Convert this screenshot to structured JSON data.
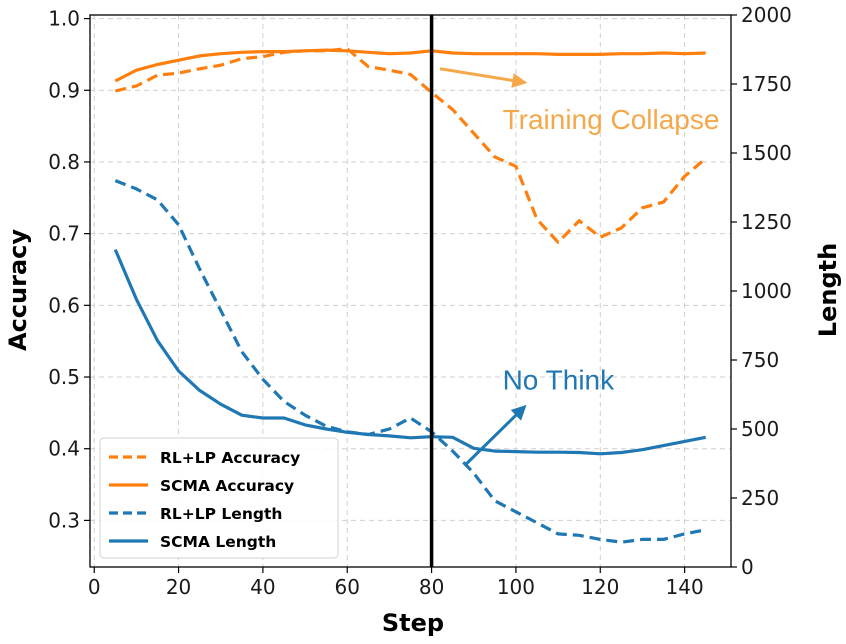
{
  "chart_data": {
    "type": "line",
    "xlabel": "Step",
    "ylabel": "Accuracy",
    "y2label": "Length",
    "xlim": [
      -1,
      151
    ],
    "ylim": [
      0.235,
      1.005
    ],
    "y2lim": [
      0,
      2000
    ],
    "xticks": [
      0,
      20,
      40,
      60,
      80,
      100,
      120,
      140
    ],
    "yticks": [
      0.3,
      0.4,
      0.5,
      0.6,
      0.7,
      0.8,
      0.9,
      1.0
    ],
    "y2ticks": [
      0,
      250,
      500,
      750,
      1000,
      1250,
      1500,
      1750,
      2000
    ],
    "grid": true,
    "vertical_line_step": 80,
    "colors": {
      "orange": "#ff7f0e",
      "blue": "#1f77b4",
      "annotation_orange": "#f5a849",
      "black": "#000000"
    },
    "series": [
      {
        "name": "RL+LP Accuracy",
        "axis": "left",
        "color": "orange",
        "style": "dashed",
        "x": [
          5,
          10,
          15,
          20,
          25,
          30,
          35,
          40,
          45,
          50,
          55,
          60,
          65,
          70,
          75,
          80,
          85,
          90,
          95,
          100,
          105,
          110,
          115,
          120,
          125,
          130,
          135,
          140,
          145
        ],
        "values": [
          0.899,
          0.906,
          0.921,
          0.924,
          0.93,
          0.935,
          0.944,
          0.947,
          0.953,
          0.955,
          0.955,
          0.958,
          0.933,
          0.928,
          0.922,
          0.897,
          0.873,
          0.84,
          0.807,
          0.794,
          0.72,
          0.688,
          0.718,
          0.695,
          0.708,
          0.736,
          0.744,
          0.78,
          0.805
        ]
      },
      {
        "name": "SCMA Accuracy",
        "axis": "left",
        "color": "orange",
        "style": "solid",
        "x": [
          5,
          10,
          15,
          20,
          25,
          30,
          35,
          40,
          45,
          50,
          55,
          60,
          65,
          70,
          75,
          80,
          85,
          90,
          95,
          100,
          105,
          110,
          115,
          120,
          125,
          130,
          135,
          140,
          145
        ],
        "values": [
          0.913,
          0.928,
          0.936,
          0.942,
          0.948,
          0.951,
          0.953,
          0.954,
          0.954,
          0.955,
          0.956,
          0.955,
          0.953,
          0.951,
          0.952,
          0.955,
          0.952,
          0.951,
          0.951,
          0.951,
          0.951,
          0.95,
          0.95,
          0.95,
          0.951,
          0.951,
          0.952,
          0.951,
          0.952
        ]
      },
      {
        "name": "RL+LP Length",
        "axis": "right",
        "color": "blue",
        "style": "dashed",
        "x": [
          5,
          10,
          15,
          20,
          25,
          30,
          35,
          40,
          45,
          50,
          55,
          60,
          65,
          70,
          75,
          80,
          85,
          90,
          95,
          100,
          105,
          110,
          115,
          120,
          125,
          130,
          135,
          140,
          145
        ],
        "values": [
          1400,
          1370,
          1330,
          1240,
          1080,
          930,
          780,
          680,
          600,
          550,
          510,
          490,
          480,
          500,
          540,
          490,
          420,
          340,
          240,
          200,
          160,
          120,
          115,
          100,
          90,
          100,
          100,
          120,
          135
        ]
      },
      {
        "name": "SCMA Length",
        "axis": "right",
        "color": "blue",
        "style": "solid",
        "x": [
          5,
          10,
          15,
          20,
          25,
          30,
          35,
          40,
          45,
          50,
          55,
          60,
          65,
          70,
          75,
          80,
          85,
          90,
          95,
          100,
          105,
          110,
          115,
          120,
          125,
          130,
          135,
          140,
          145
        ],
        "values": [
          1150,
          970,
          820,
          710,
          640,
          590,
          550,
          540,
          540,
          515,
          500,
          488,
          480,
          475,
          468,
          472,
          470,
          430,
          420,
          418,
          416,
          416,
          415,
          410,
          415,
          425,
          440,
          455,
          470
        ]
      }
    ],
    "legend": {
      "position": "lower-left",
      "entries": [
        "RL+LP Accuracy",
        "SCMA Accuracy",
        "RL+LP Length",
        "SCMA Length"
      ]
    },
    "annotations": [
      {
        "text": "Training Collapse",
        "color": "annotation_orange",
        "arrow_from": [
          82,
          0.93
        ],
        "arrow_to": [
          102,
          0.911
        ],
        "text_at": [
          103,
          0.86
        ]
      },
      {
        "text": "No Think",
        "color": "blue",
        "arrow_from": [
          88,
          370
        ],
        "arrow_to": [
          102,
          580
        ],
        "text_at": [
          103,
          680
        ]
      }
    ]
  }
}
